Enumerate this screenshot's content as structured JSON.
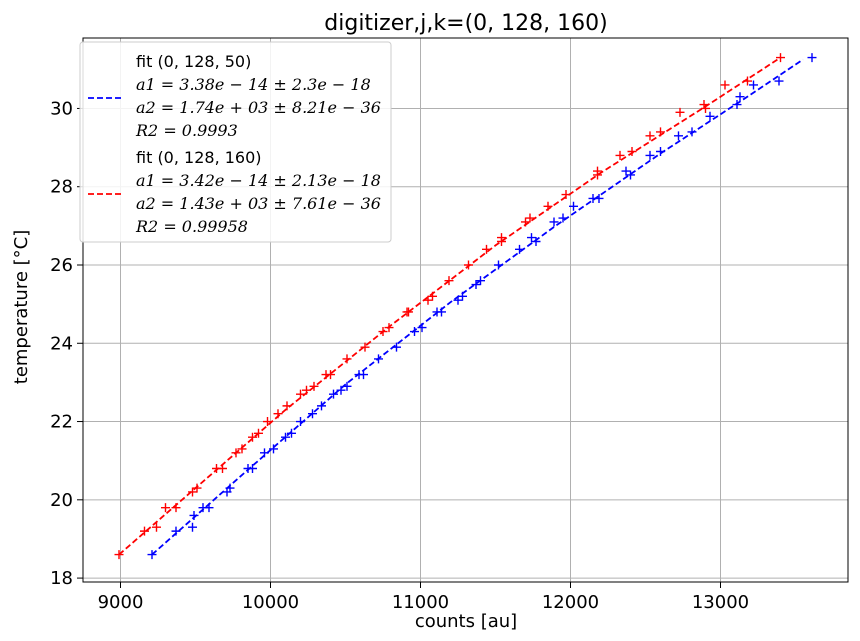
{
  "chart_data": {
    "type": "scatter",
    "title": "digitizer,j,k=(0, 128, 160)",
    "xlabel": "counts [au]",
    "ylabel": "temperature [°C]",
    "xlim": [
      8750,
      13850
    ],
    "ylim": [
      17.9,
      31.8
    ],
    "xticks": [
      9000,
      10000,
      11000,
      12000,
      13000
    ],
    "yticks": [
      18,
      20,
      22,
      24,
      26,
      28,
      30
    ],
    "grid": true,
    "legend_position": "top-left",
    "series": [
      {
        "name": "fit (0, 128, 50)",
        "color": "#0000ff",
        "marker": "+",
        "fit_style": "dashed",
        "legend_lines": [
          "fit (0, 128, 50)",
          "a1 = 3.38e − 14 ± 2.3e − 18",
          "a2 = 1.74e + 03 ± 8.21e − 36",
          "R2 = 0.9993"
        ],
        "points": [
          [
            9210,
            18.6
          ],
          [
            9370,
            19.2
          ],
          [
            9480,
            19.3
          ],
          [
            9490,
            19.6
          ],
          [
            9550,
            19.8
          ],
          [
            9590,
            19.8
          ],
          [
            9710,
            20.2
          ],
          [
            9730,
            20.3
          ],
          [
            9850,
            20.8
          ],
          [
            9880,
            20.8
          ],
          [
            9960,
            21.2
          ],
          [
            10020,
            21.3
          ],
          [
            10100,
            21.6
          ],
          [
            10140,
            21.7
          ],
          [
            10200,
            22.0
          ],
          [
            10280,
            22.2
          ],
          [
            10340,
            22.4
          ],
          [
            10420,
            22.7
          ],
          [
            10470,
            22.8
          ],
          [
            10510,
            22.9
          ],
          [
            10590,
            23.2
          ],
          [
            10620,
            23.2
          ],
          [
            10720,
            23.6
          ],
          [
            10840,
            23.9
          ],
          [
            10960,
            24.3
          ],
          [
            11010,
            24.4
          ],
          [
            11110,
            24.8
          ],
          [
            11140,
            24.8
          ],
          [
            11250,
            25.1
          ],
          [
            11280,
            25.2
          ],
          [
            11370,
            25.5
          ],
          [
            11400,
            25.6
          ],
          [
            11520,
            26.0
          ],
          [
            11660,
            26.4
          ],
          [
            11740,
            26.7
          ],
          [
            11770,
            26.6
          ],
          [
            11890,
            27.1
          ],
          [
            11950,
            27.2
          ],
          [
            12020,
            27.5
          ],
          [
            12150,
            27.7
          ],
          [
            12190,
            27.7
          ],
          [
            12370,
            28.4
          ],
          [
            12400,
            28.3
          ],
          [
            12530,
            28.8
          ],
          [
            12600,
            28.9
          ],
          [
            12720,
            29.3
          ],
          [
            12810,
            29.4
          ],
          [
            12930,
            29.8
          ],
          [
            13110,
            30.1
          ],
          [
            13130,
            30.3
          ],
          [
            13220,
            30.6
          ],
          [
            13390,
            30.7
          ],
          [
            13610,
            31.3
          ]
        ],
        "fit": [
          [
            9210,
            18.6
          ],
          [
            9800,
            20.6
          ],
          [
            10500,
            22.95
          ],
          [
            11200,
            25.05
          ],
          [
            11900,
            27.0
          ],
          [
            12600,
            28.85
          ],
          [
            13200,
            30.35
          ],
          [
            13550,
            31.25
          ]
        ]
      },
      {
        "name": "fit (0, 128, 160)",
        "color": "#ff0000",
        "marker": "+",
        "fit_style": "dashed",
        "legend_lines": [
          "fit (0, 128, 160)",
          "a1 = 3.42e − 14 ± 2.13e − 18",
          "a2 = 1.43e + 03 ± 7.61e − 36",
          "R2 = 0.99958"
        ],
        "points": [
          [
            8990,
            18.6
          ],
          [
            9160,
            19.2
          ],
          [
            9240,
            19.3
          ],
          [
            9300,
            19.8
          ],
          [
            9370,
            19.8
          ],
          [
            9480,
            20.2
          ],
          [
            9510,
            20.3
          ],
          [
            9640,
            20.8
          ],
          [
            9680,
            20.8
          ],
          [
            9770,
            21.2
          ],
          [
            9810,
            21.3
          ],
          [
            9880,
            21.6
          ],
          [
            9920,
            21.7
          ],
          [
            9980,
            22.0
          ],
          [
            10050,
            22.2
          ],
          [
            10110,
            22.4
          ],
          [
            10200,
            22.7
          ],
          [
            10240,
            22.8
          ],
          [
            10290,
            22.9
          ],
          [
            10370,
            23.2
          ],
          [
            10400,
            23.2
          ],
          [
            10510,
            23.6
          ],
          [
            10630,
            23.9
          ],
          [
            10750,
            24.3
          ],
          [
            10790,
            24.4
          ],
          [
            10910,
            24.8
          ],
          [
            10920,
            24.8
          ],
          [
            11050,
            25.1
          ],
          [
            11080,
            25.2
          ],
          [
            11190,
            25.6
          ],
          [
            11320,
            26.0
          ],
          [
            11440,
            26.4
          ],
          [
            11540,
            26.6
          ],
          [
            11540,
            26.7
          ],
          [
            11700,
            27.1
          ],
          [
            11730,
            27.2
          ],
          [
            11850,
            27.5
          ],
          [
            11970,
            27.8
          ],
          [
            12180,
            28.3
          ],
          [
            12180,
            28.4
          ],
          [
            12330,
            28.8
          ],
          [
            12410,
            28.9
          ],
          [
            12530,
            29.3
          ],
          [
            12600,
            29.4
          ],
          [
            12730,
            29.9
          ],
          [
            12890,
            30.1
          ],
          [
            12900,
            30.0
          ],
          [
            13030,
            30.6
          ],
          [
            13180,
            30.7
          ],
          [
            13400,
            31.3
          ]
        ],
        "fit": [
          [
            8990,
            18.6
          ],
          [
            9500,
            20.3
          ],
          [
            10100,
            22.3
          ],
          [
            10800,
            24.45
          ],
          [
            11500,
            26.5
          ],
          [
            12200,
            28.35
          ],
          [
            12900,
            30.05
          ],
          [
            13400,
            31.3
          ]
        ]
      }
    ]
  }
}
